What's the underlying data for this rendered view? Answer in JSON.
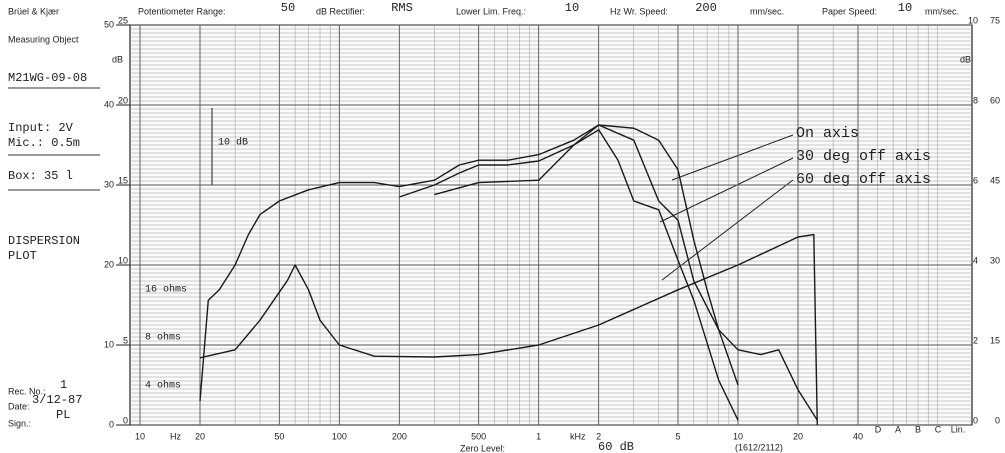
{
  "chart_data": {
    "type": "line",
    "header": {
      "brand": "Brüel & Kjær",
      "potentiometer_label": "Potentiometer Range:",
      "potentiometer": "50",
      "rectifier_label": "dB Rectifier:",
      "rectifier": "RMS",
      "lower_freq_label": "Lower Lim. Freq.:",
      "lower_freq": "10",
      "writing_speed_label": "Hz Wr. Speed:",
      "writing_speed": "200",
      "writing_unit": "mm/sec.",
      "paper_speed_label": "Paper Speed:",
      "paper_speed": "10",
      "paper_unit": "mm/sec."
    },
    "side_panel": {
      "object_label": "Measuring Object",
      "object": "M21WG-09-08",
      "input": "Input: 2V",
      "mic": "Mic.: 0.5m",
      "box": "Box: 35 l",
      "title_line1": "DISPERSION",
      "title_line2": "PLOT",
      "rec_label": "Rec. No.:",
      "rec": "1",
      "date_label": "Date:",
      "date": "3/12-87",
      "sign_label": "Sign.:",
      "sign": "PL"
    },
    "footer": {
      "zero_label": "Zero Level:",
      "zero": "60 dB",
      "code": "(1612/2112)"
    },
    "x_units": [
      "Hz",
      "kHz"
    ],
    "y_unit": "dB",
    "weighting_labels": [
      "D",
      "A",
      "B",
      "C",
      "Lin."
    ],
    "x_log": true,
    "xlim": [
      10,
      40000
    ],
    "xticks": [
      10,
      20,
      50,
      100,
      200,
      500,
      {
        "value": 1000,
        "label": "1"
      },
      {
        "value": 2000,
        "label": "2"
      },
      {
        "value": 5000,
        "label": "5"
      },
      {
        "value": 10000,
        "label": "10"
      },
      {
        "value": 20000,
        "label": "20"
      },
      {
        "value": 40000,
        "label": "40"
      }
    ],
    "ylim": [
      0,
      50
    ],
    "yticks": [
      0,
      10,
      20,
      30,
      40,
      50
    ],
    "y2lim": [
      0,
      25
    ],
    "y2ticks": [
      0,
      5,
      10,
      15,
      20,
      25
    ],
    "right_scales": [
      {
        "lim": [
          0,
          10
        ],
        "ticks": [
          0,
          2,
          4,
          6,
          8,
          10
        ]
      },
      {
        "lim": [
          0,
          75
        ],
        "ticks": [
          0,
          15,
          30,
          45,
          60,
          75
        ]
      }
    ],
    "grid": true,
    "annotations": [
      {
        "text": "10 dB"
      },
      {
        "text": "16 ohms",
        "y": 17
      },
      {
        "text": "8 ohms",
        "y": 11
      },
      {
        "text": "4 ohms",
        "y": 5
      }
    ],
    "series": [
      {
        "name": "On axis",
        "color": "#1a1a1a",
        "x": [
          20,
          22,
          25,
          30,
          35,
          40,
          50,
          70,
          100,
          150,
          200,
          300,
          400,
          500,
          700,
          1000,
          1500,
          2000,
          3000,
          4000,
          5000,
          6000,
          7000,
          8000,
          10000,
          13000,
          16000,
          20000,
          25000
        ],
        "values": [
          3,
          15.6,
          16.9,
          20,
          23.8,
          26.3,
          28,
          29.4,
          30.3,
          30.3,
          29.8,
          30.6,
          32.5,
          33.1,
          33.1,
          33.8,
          35.6,
          37.5,
          37.1,
          35.6,
          31.9,
          23.1,
          16.9,
          11.9,
          9.4,
          8.8,
          9.4,
          4.4,
          0.6
        ]
      },
      {
        "name": "30 deg off axis",
        "color": "#1a1a1a",
        "x": [
          200,
          300,
          400,
          500,
          700,
          1000,
          1500,
          2000,
          3000,
          4000,
          5000,
          6000,
          8000,
          10000
        ],
        "values": [
          28.5,
          30,
          31.5,
          32.5,
          32.5,
          33,
          35,
          37.5,
          35.6,
          28,
          25.6,
          18,
          11.9,
          5
        ]
      },
      {
        "name": "60 deg off axis",
        "color": "#1a1a1a",
        "x": [
          300,
          500,
          1000,
          1500,
          2000,
          2500,
          3000,
          4000,
          5000,
          6000,
          8000,
          10000
        ],
        "values": [
          28.8,
          30.3,
          30.6,
          35,
          36.9,
          33.1,
          28,
          26.9,
          20.6,
          15.6,
          5.6,
          0.6
        ]
      },
      {
        "color": "#1a1a1a",
        "x": [
          20,
          30,
          40,
          55,
          60,
          70,
          80,
          100,
          150,
          300,
          500,
          1000,
          2000,
          5000,
          10000,
          20000,
          24000,
          25000
        ],
        "values": [
          8.4,
          9.4,
          13.1,
          18.1,
          20,
          16.9,
          13.1,
          10,
          8.6,
          8.5,
          8.8,
          10,
          12.5,
          16.9,
          20,
          23.5,
          23.8,
          0
        ]
      }
    ]
  }
}
